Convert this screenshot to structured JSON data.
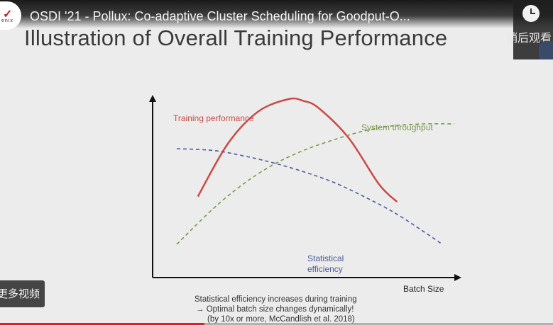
{
  "video": {
    "title": "OSDI '21 - Pollux: Co-adaptive Cluster Scheduling for Goodput-O...",
    "channel_logo_text": "enix",
    "watch_later_label": "稍后观看",
    "more_videos_label": "更多视频",
    "progress": 0.37,
    "progress_color": "#e02020"
  },
  "slide": {
    "title": "Illustration of Overall Training Performance",
    "caption_lines": [
      "Statistical efficiency increases during training",
      "→  Optimal batch size changes dynamically!",
      "(by 10x or more, McCandlish et al. 2018)"
    ]
  },
  "chart_data": {
    "type": "line",
    "title": "",
    "xlabel": "Batch Size",
    "ylabel": "",
    "xlim": [
      0,
      100
    ],
    "ylim": [
      0,
      100
    ],
    "grid": false,
    "series": [
      {
        "name": "Training performance",
        "color": "#cc4a44",
        "style": "solid",
        "x": [
          15,
          25,
          35,
          45,
          50,
          55,
          65,
          75,
          81
        ],
        "y": [
          45,
          75,
          93,
          100,
          99,
          95,
          78,
          52,
          42
        ]
      },
      {
        "name": "System throughput",
        "color": "#7b9a4e",
        "style": "dashed",
        "x": [
          8,
          20,
          30,
          40,
          50,
          60,
          70,
          80,
          90,
          100
        ],
        "y": [
          18,
          38,
          52,
          63,
          71,
          77,
          82,
          85,
          86,
          86
        ]
      },
      {
        "name": "Statistical efficiency",
        "color": "#4a5c9e",
        "style": "dashed",
        "x": [
          8,
          20,
          30,
          40,
          50,
          60,
          70,
          80,
          90,
          96
        ],
        "y": [
          72,
          71,
          68,
          64,
          59,
          53,
          45,
          36,
          25,
          18
        ]
      }
    ]
  }
}
